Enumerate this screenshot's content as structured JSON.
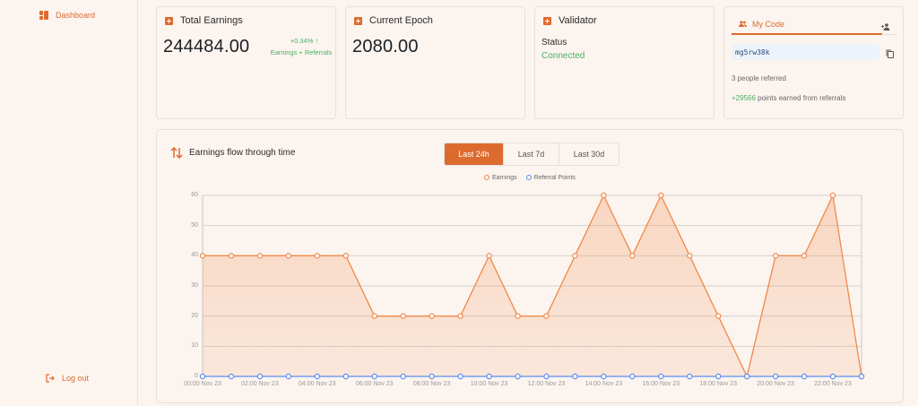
{
  "sidebar": {
    "items": [
      {
        "label": "Dashboard",
        "icon": "dashboard-icon"
      }
    ],
    "logout_label": "Log out"
  },
  "cards": {
    "total_earnings": {
      "title": "Total Earnings",
      "value": "244484.00",
      "change": "+0.34% ↑",
      "note": "Earnings + Referrals"
    },
    "current_epoch": {
      "title": "Current Epoch",
      "value": "2080.00"
    },
    "validator": {
      "title": "Validator",
      "status_label": "Status",
      "status_value": "Connected"
    },
    "referral": {
      "tab_label": "My Code",
      "code": "mg5rw38k",
      "people_referred": "3 people referred",
      "points_value": "+29566",
      "points_text": " points earned from referrals"
    }
  },
  "chart_panel": {
    "title": "Earnings flow through time",
    "tabs": [
      "Last 24h",
      "Last 7d",
      "Last 30d"
    ],
    "active_tab": "Last 24h"
  },
  "colors": {
    "accent": "#dd6b2f",
    "earnings": "#ef8a4a",
    "referral": "#5b8def",
    "success": "#4caf63"
  },
  "chart_data": {
    "type": "area",
    "title": "Earnings flow through time",
    "x": [
      "00:00 Nov 23",
      "01:00 Nov 23",
      "02:00 Nov 23",
      "03:00 Nov 23",
      "04:00 Nov 23",
      "05:00 Nov 23",
      "06:00 Nov 23",
      "07:00 Nov 23",
      "08:00 Nov 23",
      "09:00 Nov 23",
      "10:00 Nov 23",
      "11:00 Nov 23",
      "12:00 Nov 23",
      "13:00 Nov 23",
      "14:00 Nov 23",
      "15:00 Nov 23",
      "16:00 Nov 23",
      "17:00 Nov 23",
      "18:00 Nov 23",
      "19:00 Nov 23",
      "20:00 Nov 23",
      "21:00 Nov 23",
      "22:00 Nov 23",
      "23:00 Nov 23"
    ],
    "x_tick_labels": [
      "00:00 Nov 23",
      "02:00 Nov 23",
      "04:00 Nov 23",
      "06:00 Nov 23",
      "08:00 Nov 23",
      "10:00 Nov 23",
      "12:00 Nov 23",
      "14:00 Nov 23",
      "16:00 Nov 23",
      "18:00 Nov 23",
      "20:00 Nov 23",
      "22:00 Nov 23"
    ],
    "series": [
      {
        "name": "Earnings",
        "color": "#ef8a4a",
        "values": [
          40,
          40,
          40,
          40,
          40,
          40,
          20,
          20,
          20,
          20,
          40,
          20,
          20,
          40,
          60,
          40,
          60,
          40,
          20,
          0,
          40,
          40,
          60,
          0
        ]
      },
      {
        "name": "Referral Points",
        "color": "#5b8def",
        "values": [
          0,
          0,
          0,
          0,
          0,
          0,
          0,
          0,
          0,
          0,
          0,
          0,
          0,
          0,
          0,
          0,
          0,
          0,
          0,
          0,
          0,
          0,
          0,
          0
        ]
      }
    ],
    "yticks": [
      0,
      10,
      20,
      30,
      40,
      50,
      60
    ],
    "ylim": [
      0,
      60
    ],
    "grid": true,
    "legend_position": "top"
  }
}
